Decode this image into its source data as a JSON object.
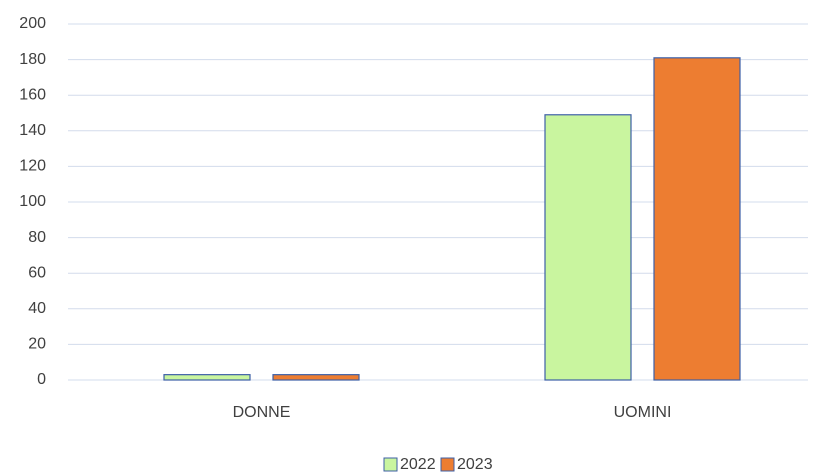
{
  "chart_data": {
    "type": "bar",
    "categories": [
      "DONNE",
      "UOMINI"
    ],
    "series": [
      {
        "name": "2022",
        "color": "#c9f59f",
        "values": [
          3,
          149
        ]
      },
      {
        "name": "2023",
        "color": "#ed7d31",
        "values": [
          3,
          181
        ]
      }
    ],
    "ylim": [
      0,
      200
    ],
    "yticks": [
      0,
      20,
      40,
      60,
      80,
      100,
      120,
      140,
      160,
      180,
      200
    ],
    "grid": true,
    "legend": "bottom"
  }
}
